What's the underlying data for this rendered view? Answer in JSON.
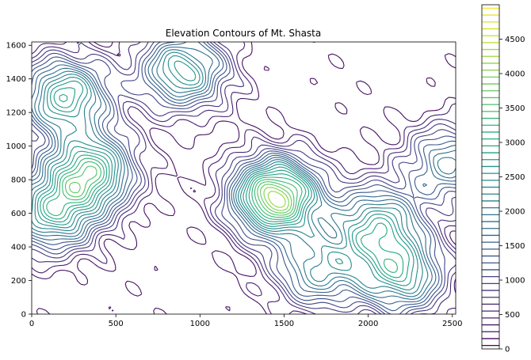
{
  "chart_data": {
    "type": "contour",
    "title": "Elevation Contours of Mt. Shasta",
    "xlabel": "",
    "ylabel": "",
    "xlim": [
      0,
      2520
    ],
    "ylim": [
      0,
      1620
    ],
    "x_ticks": [
      0,
      500,
      1000,
      1500,
      2000,
      2500
    ],
    "y_ticks": [
      0,
      200,
      400,
      600,
      800,
      1000,
      1200,
      1400,
      1600
    ],
    "colorbar": {
      "range": [
        0,
        5000
      ],
      "ticks": [
        0,
        500,
        1000,
        1500,
        2000,
        2500,
        3000,
        3500,
        4000,
        4500
      ],
      "level_step": 100,
      "colormap": "viridis"
    },
    "peaks": [
      {
        "x": 1450,
        "y": 700,
        "elevation": 4300
      },
      {
        "x": 350,
        "y": 850,
        "elevation": 3200
      },
      {
        "x": 200,
        "y": 1300,
        "elevation": 2900
      },
      {
        "x": 900,
        "y": 1450,
        "elevation": 2700
      },
      {
        "x": 2050,
        "y": 540,
        "elevation": 2500
      },
      {
        "x": 2200,
        "y": 230,
        "elevation": 2600
      },
      {
        "x": 1700,
        "y": 260,
        "elevation": 2100
      },
      {
        "x": 2480,
        "y": 900,
        "elevation": 2000
      },
      {
        "x": 120,
        "y": 600,
        "elevation": 2600
      }
    ],
    "grid": false,
    "legend": "none"
  }
}
